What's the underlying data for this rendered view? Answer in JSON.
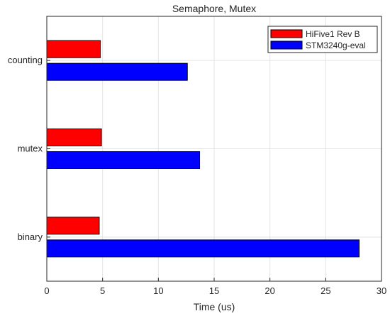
{
  "chart_data": {
    "type": "bar",
    "orientation": "horizontal",
    "title": "Semaphore, Mutex",
    "xlabel": "Time (us)",
    "ylabel": "",
    "xlim": [
      0,
      30
    ],
    "xticks": [
      "0",
      "5",
      "10",
      "15",
      "20",
      "25",
      "30"
    ],
    "categories": [
      "binary",
      "mutex",
      "counting"
    ],
    "series": [
      {
        "name": "HiFive1 Rev B",
        "color": "#ff0000",
        "values": [
          4.7,
          4.9,
          4.8
        ]
      },
      {
        "name": "STM3240g-eval",
        "color": "#0000ff",
        "values": [
          28.0,
          13.7,
          12.6
        ]
      }
    ],
    "grid": true,
    "legend_position": "top-right"
  }
}
